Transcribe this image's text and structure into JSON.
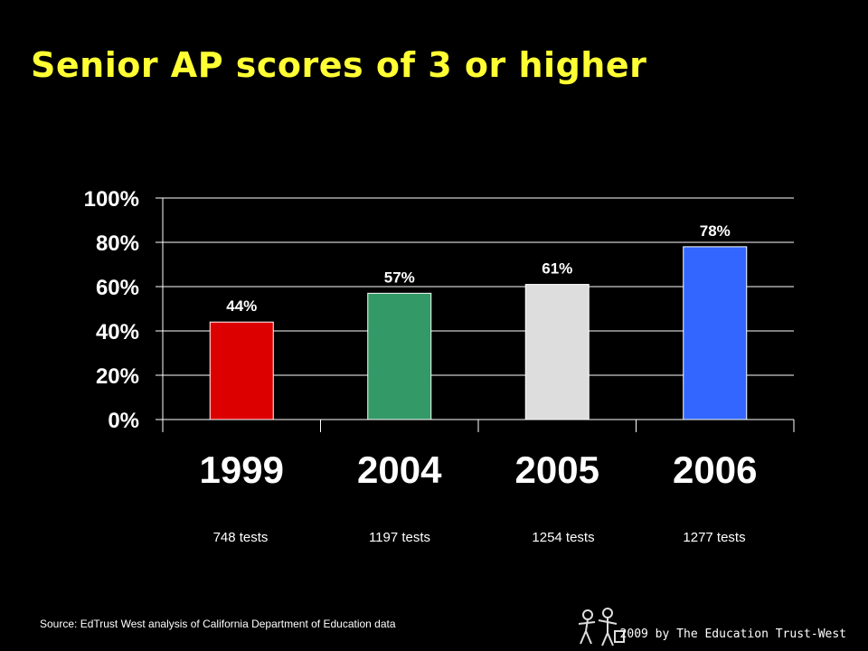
{
  "title": "Senior AP scores of 3 or higher",
  "chart_data": {
    "type": "bar",
    "categories": [
      "1999",
      "2004",
      "2005",
      "2006"
    ],
    "values": [
      44,
      57,
      61,
      78
    ],
    "data_labels": [
      "44%",
      "57%",
      "61%",
      "78%"
    ],
    "colors": [
      "#dd0000",
      "#339966",
      "#dddddd",
      "#3366ff"
    ],
    "ylim": [
      0,
      100
    ],
    "yticks": [
      "0%",
      "20%",
      "40%",
      "60%",
      "80%",
      "100%"
    ],
    "grid": true,
    "xlabel": "",
    "ylabel": ""
  },
  "test_counts": [
    "748 tests",
    "1197 tests",
    "1254 tests",
    "1277 tests"
  ],
  "source": "Source: EdTrust West analysis of California Department of Education data",
  "credit": "2009 by The Education Trust-West",
  "logo_icon": "education-trust-figures-logo"
}
